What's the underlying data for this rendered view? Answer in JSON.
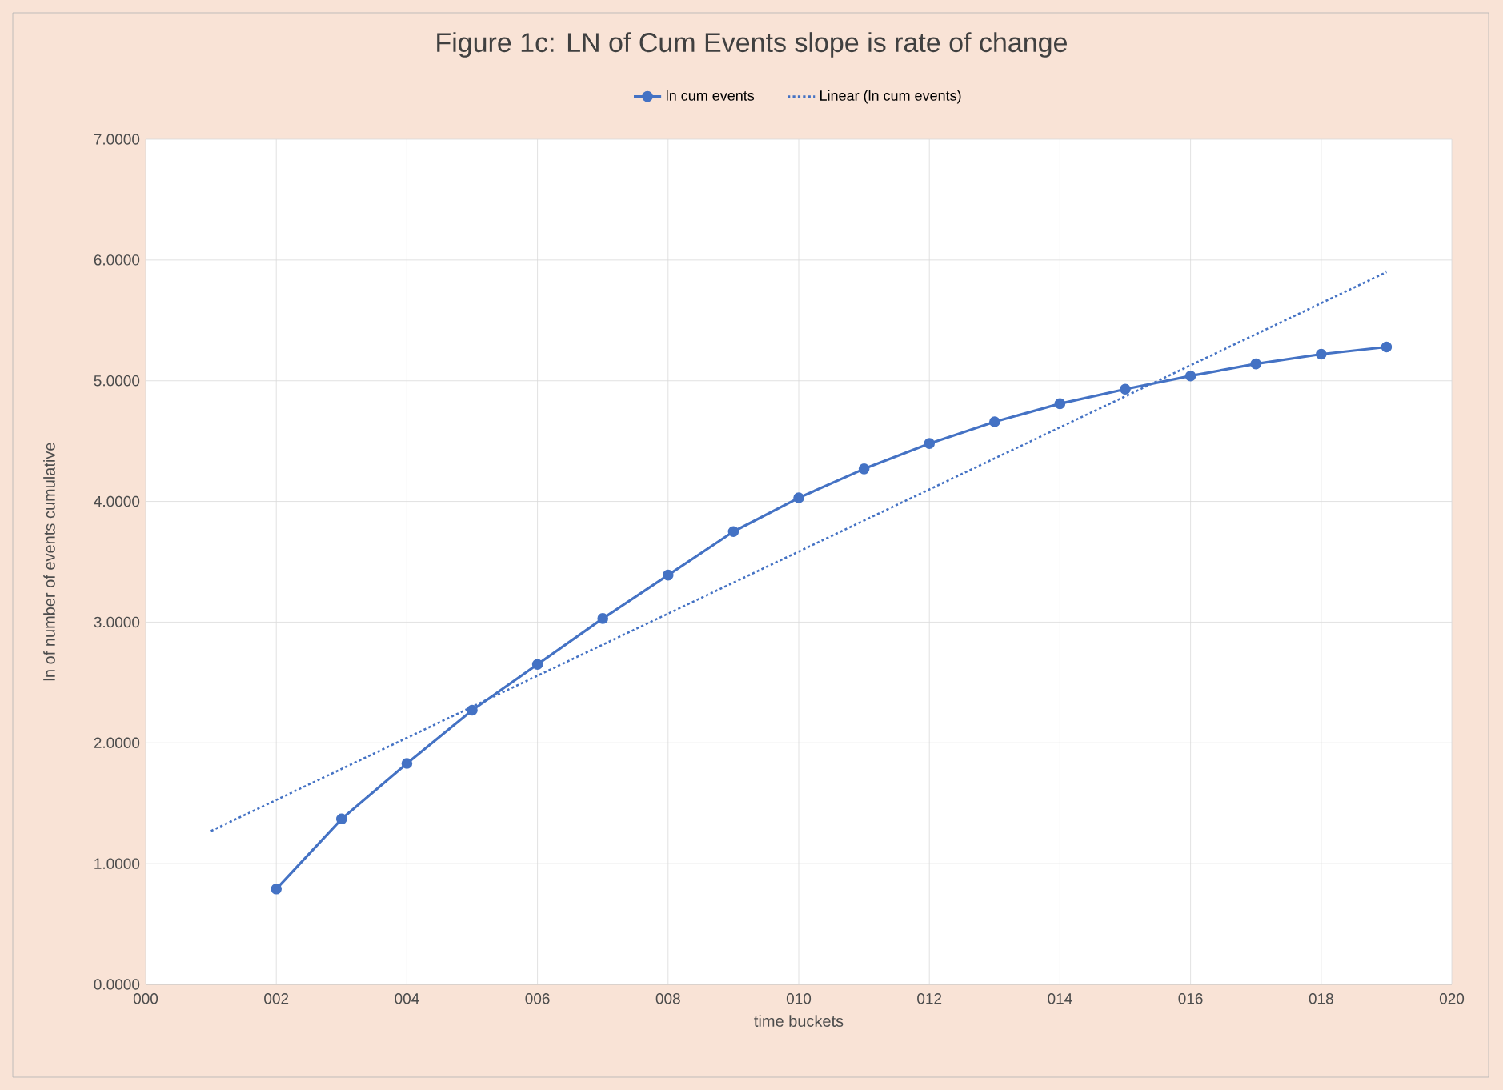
{
  "chart_data": {
    "type": "line",
    "title": "Figure 1c: LN of Cum Events slope is rate of change",
    "xlabel": "time buckets",
    "ylabel": "ln of number of events  cumulative",
    "series": [
      {
        "name": "ln cum events",
        "color": "#4472c4",
        "marker": "circle",
        "line_style": "solid",
        "x": [
          2,
          3,
          4,
          5,
          6,
          7,
          8,
          9,
          10,
          11,
          12,
          13,
          14,
          15,
          16,
          17,
          18,
          19
        ],
        "values": [
          0.79,
          1.37,
          1.83,
          2.27,
          2.65,
          3.03,
          3.39,
          3.75,
          4.03,
          4.27,
          4.48,
          4.66,
          4.81,
          4.93,
          5.04,
          5.14,
          5.22,
          5.28
        ]
      },
      {
        "name": "Linear (ln cum events)",
        "color": "#4472c4",
        "marker": "none",
        "line_style": "dotted",
        "x": [
          1,
          19
        ],
        "values": [
          1.27,
          5.9
        ]
      }
    ],
    "xlim": [
      0,
      20
    ],
    "xticks": [
      {
        "value": 0,
        "label": "000"
      },
      {
        "value": 2,
        "label": "002"
      },
      {
        "value": 4,
        "label": "004"
      },
      {
        "value": 6,
        "label": "006"
      },
      {
        "value": 8,
        "label": "008"
      },
      {
        "value": 10,
        "label": "010"
      },
      {
        "value": 12,
        "label": "012"
      },
      {
        "value": 14,
        "label": "014"
      },
      {
        "value": 16,
        "label": "016"
      },
      {
        "value": 18,
        "label": "018"
      },
      {
        "value": 20,
        "label": "020"
      }
    ],
    "ylim": [
      0,
      7
    ],
    "yticks": [
      {
        "value": 0,
        "label": "0.0000"
      },
      {
        "value": 1,
        "label": "1.0000"
      },
      {
        "value": 2,
        "label": "2.0000"
      },
      {
        "value": 3,
        "label": "3.0000"
      },
      {
        "value": 4,
        "label": "4.0000"
      },
      {
        "value": 5,
        "label": "5.0000"
      },
      {
        "value": 6,
        "label": "6.0000"
      },
      {
        "value": 7,
        "label": "7.0000"
      }
    ],
    "grid": true,
    "legend": "top"
  }
}
